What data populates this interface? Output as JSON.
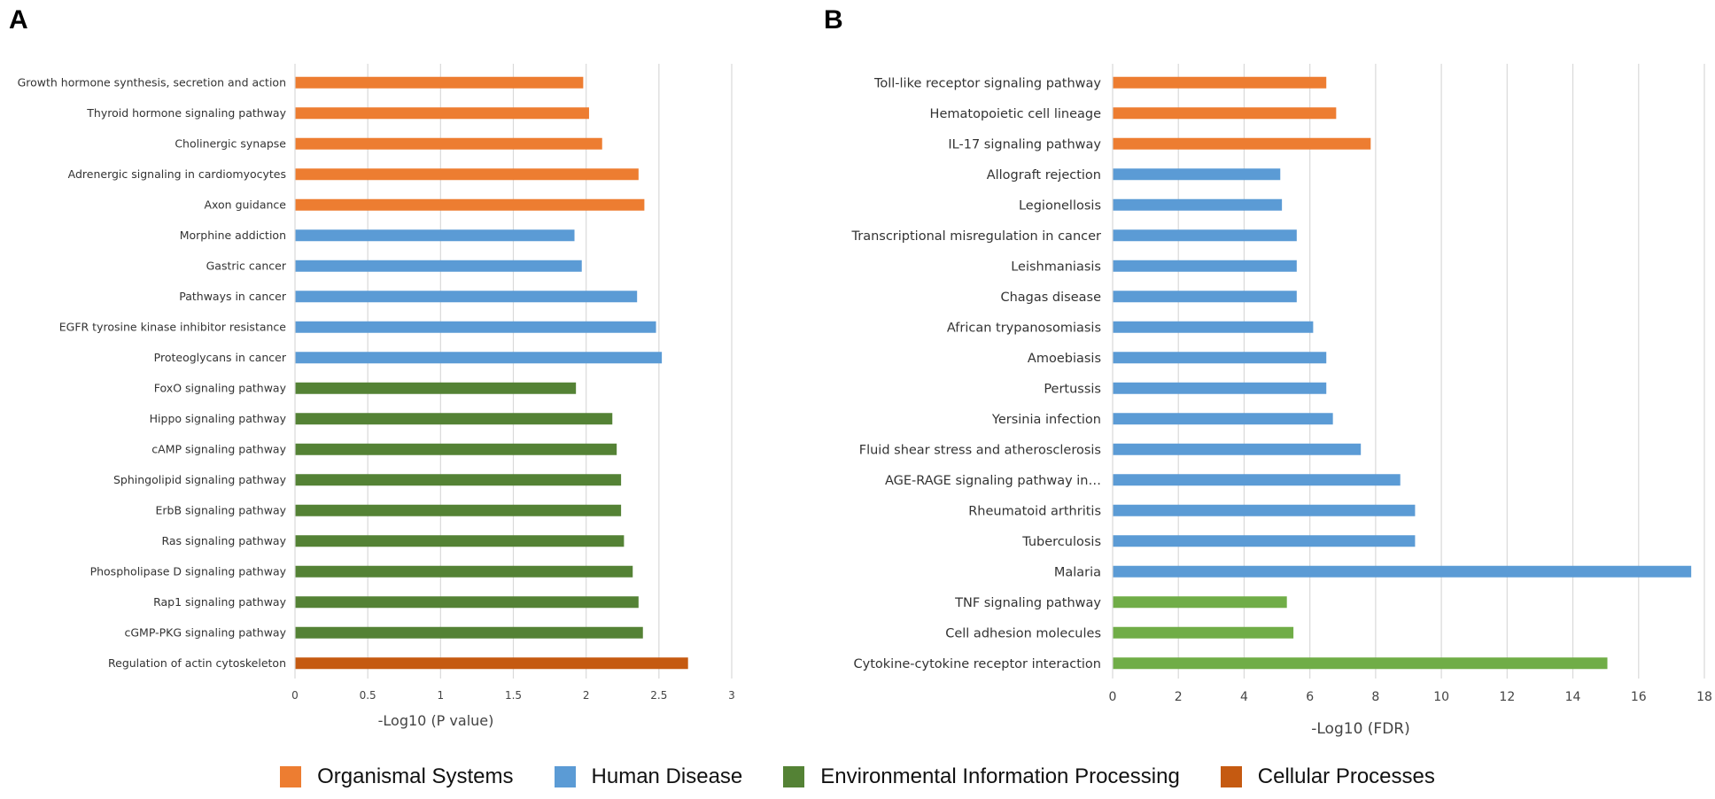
{
  "panels": {
    "a_label": "A",
    "b_label": "B"
  },
  "colors": {
    "Organismal Systems": "#ED7D31",
    "Human Disease": "#5B9BD5",
    "Environmental Information Processing A": "#548235",
    "Environmental Information Processing B": "#70AD47",
    "Cellular Processes": "#C55A11",
    "grid": "#D9D9D9"
  },
  "legend": [
    {
      "label": "Organismal Systems",
      "color": "#ED7D31"
    },
    {
      "label": "Human Disease",
      "color": "#5B9BD5"
    },
    {
      "label": "Environmental Information Processing",
      "color": "#548235"
    },
    {
      "label": "Cellular Processes",
      "color": "#C55A11"
    }
  ],
  "chart_data": [
    {
      "type": "bar",
      "orientation": "horizontal",
      "xlabel": "-Log10 (P value)",
      "xlim": [
        0,
        3
      ],
      "xticks": [
        "0",
        "0.5",
        "1",
        "1.5",
        "2",
        "2.5",
        "3"
      ],
      "grid": true,
      "categories": [
        "Growth hormone synthesis, secretion and action",
        "Thyroid hormone signaling pathway",
        "Cholinergic synapse",
        "Adrenergic signaling in cardiomyocytes",
        "Axon guidance",
        "Morphine addiction",
        "Gastric cancer",
        "Pathways in cancer",
        "EGFR tyrosine kinase inhibitor resistance",
        "Proteoglycans in cancer",
        "FoxO signaling pathway",
        "Hippo signaling pathway",
        "cAMP signaling pathway",
        "Sphingolipid signaling pathway",
        "ErbB signaling pathway",
        "Ras signaling pathway",
        "Phospholipase D signaling pathway",
        "Rap1 signaling pathway",
        "cGMP-PKG signaling pathway",
        "Regulation of actin cytoskeleton"
      ],
      "values": [
        1.98,
        2.02,
        2.11,
        2.36,
        2.4,
        1.92,
        1.97,
        2.35,
        2.48,
        2.52,
        1.93,
        2.18,
        2.21,
        2.24,
        2.24,
        2.26,
        2.32,
        2.36,
        2.39,
        2.7
      ],
      "groups": [
        "Organismal Systems",
        "Organismal Systems",
        "Organismal Systems",
        "Organismal Systems",
        "Organismal Systems",
        "Human Disease",
        "Human Disease",
        "Human Disease",
        "Human Disease",
        "Human Disease",
        "Environmental Information Processing",
        "Environmental Information Processing",
        "Environmental Information Processing",
        "Environmental Information Processing",
        "Environmental Information Processing",
        "Environmental Information Processing",
        "Environmental Information Processing",
        "Environmental Information Processing",
        "Environmental Information Processing",
        "Cellular Processes"
      ],
      "bar_colors": [
        "#ED7D31",
        "#ED7D31",
        "#ED7D31",
        "#ED7D31",
        "#ED7D31",
        "#5B9BD5",
        "#5B9BD5",
        "#5B9BD5",
        "#5B9BD5",
        "#5B9BD5",
        "#548235",
        "#548235",
        "#548235",
        "#548235",
        "#548235",
        "#548235",
        "#548235",
        "#548235",
        "#548235",
        "#C55A11"
      ]
    },
    {
      "type": "bar",
      "orientation": "horizontal",
      "xlabel": "-Log10 (FDR)",
      "xlim": [
        0,
        18
      ],
      "xticks": [
        "0",
        "2",
        "4",
        "6",
        "8",
        "10",
        "12",
        "14",
        "16",
        "18"
      ],
      "grid": true,
      "categories": [
        "Toll-like receptor signaling pathway",
        "Hematopoietic cell lineage",
        "IL-17 signaling pathway",
        "Allograft rejection",
        "Legionellosis",
        "Transcriptional misregulation in cancer",
        "Leishmaniasis",
        "Chagas disease",
        "African trypanosomiasis",
        "Amoebiasis",
        "Pertussis",
        "Yersinia infection",
        "Fluid shear stress and atherosclerosis",
        "AGE-RAGE signaling pathway in…",
        "Rheumatoid arthritis",
        "Tuberculosis",
        "Malaria",
        "TNF signaling pathway",
        "Cell adhesion molecules",
        "Cytokine-cytokine receptor interaction"
      ],
      "values": [
        6.5,
        6.8,
        7.85,
        5.1,
        5.15,
        5.6,
        5.6,
        5.6,
        6.1,
        6.5,
        6.5,
        6.7,
        7.55,
        8.75,
        9.2,
        9.2,
        17.6,
        5.3,
        5.5,
        15.05
      ],
      "groups": [
        "Organismal Systems",
        "Organismal Systems",
        "Organismal Systems",
        "Human Disease",
        "Human Disease",
        "Human Disease",
        "Human Disease",
        "Human Disease",
        "Human Disease",
        "Human Disease",
        "Human Disease",
        "Human Disease",
        "Human Disease",
        "Human Disease",
        "Human Disease",
        "Human Disease",
        "Human Disease",
        "Environmental Information Processing",
        "Environmental Information Processing",
        "Environmental Information Processing"
      ],
      "bar_colors": [
        "#ED7D31",
        "#ED7D31",
        "#ED7D31",
        "#5B9BD5",
        "#5B9BD5",
        "#5B9BD5",
        "#5B9BD5",
        "#5B9BD5",
        "#5B9BD5",
        "#5B9BD5",
        "#5B9BD5",
        "#5B9BD5",
        "#5B9BD5",
        "#5B9BD5",
        "#5B9BD5",
        "#5B9BD5",
        "#5B9BD5",
        "#70AD47",
        "#70AD47",
        "#70AD47"
      ]
    }
  ]
}
